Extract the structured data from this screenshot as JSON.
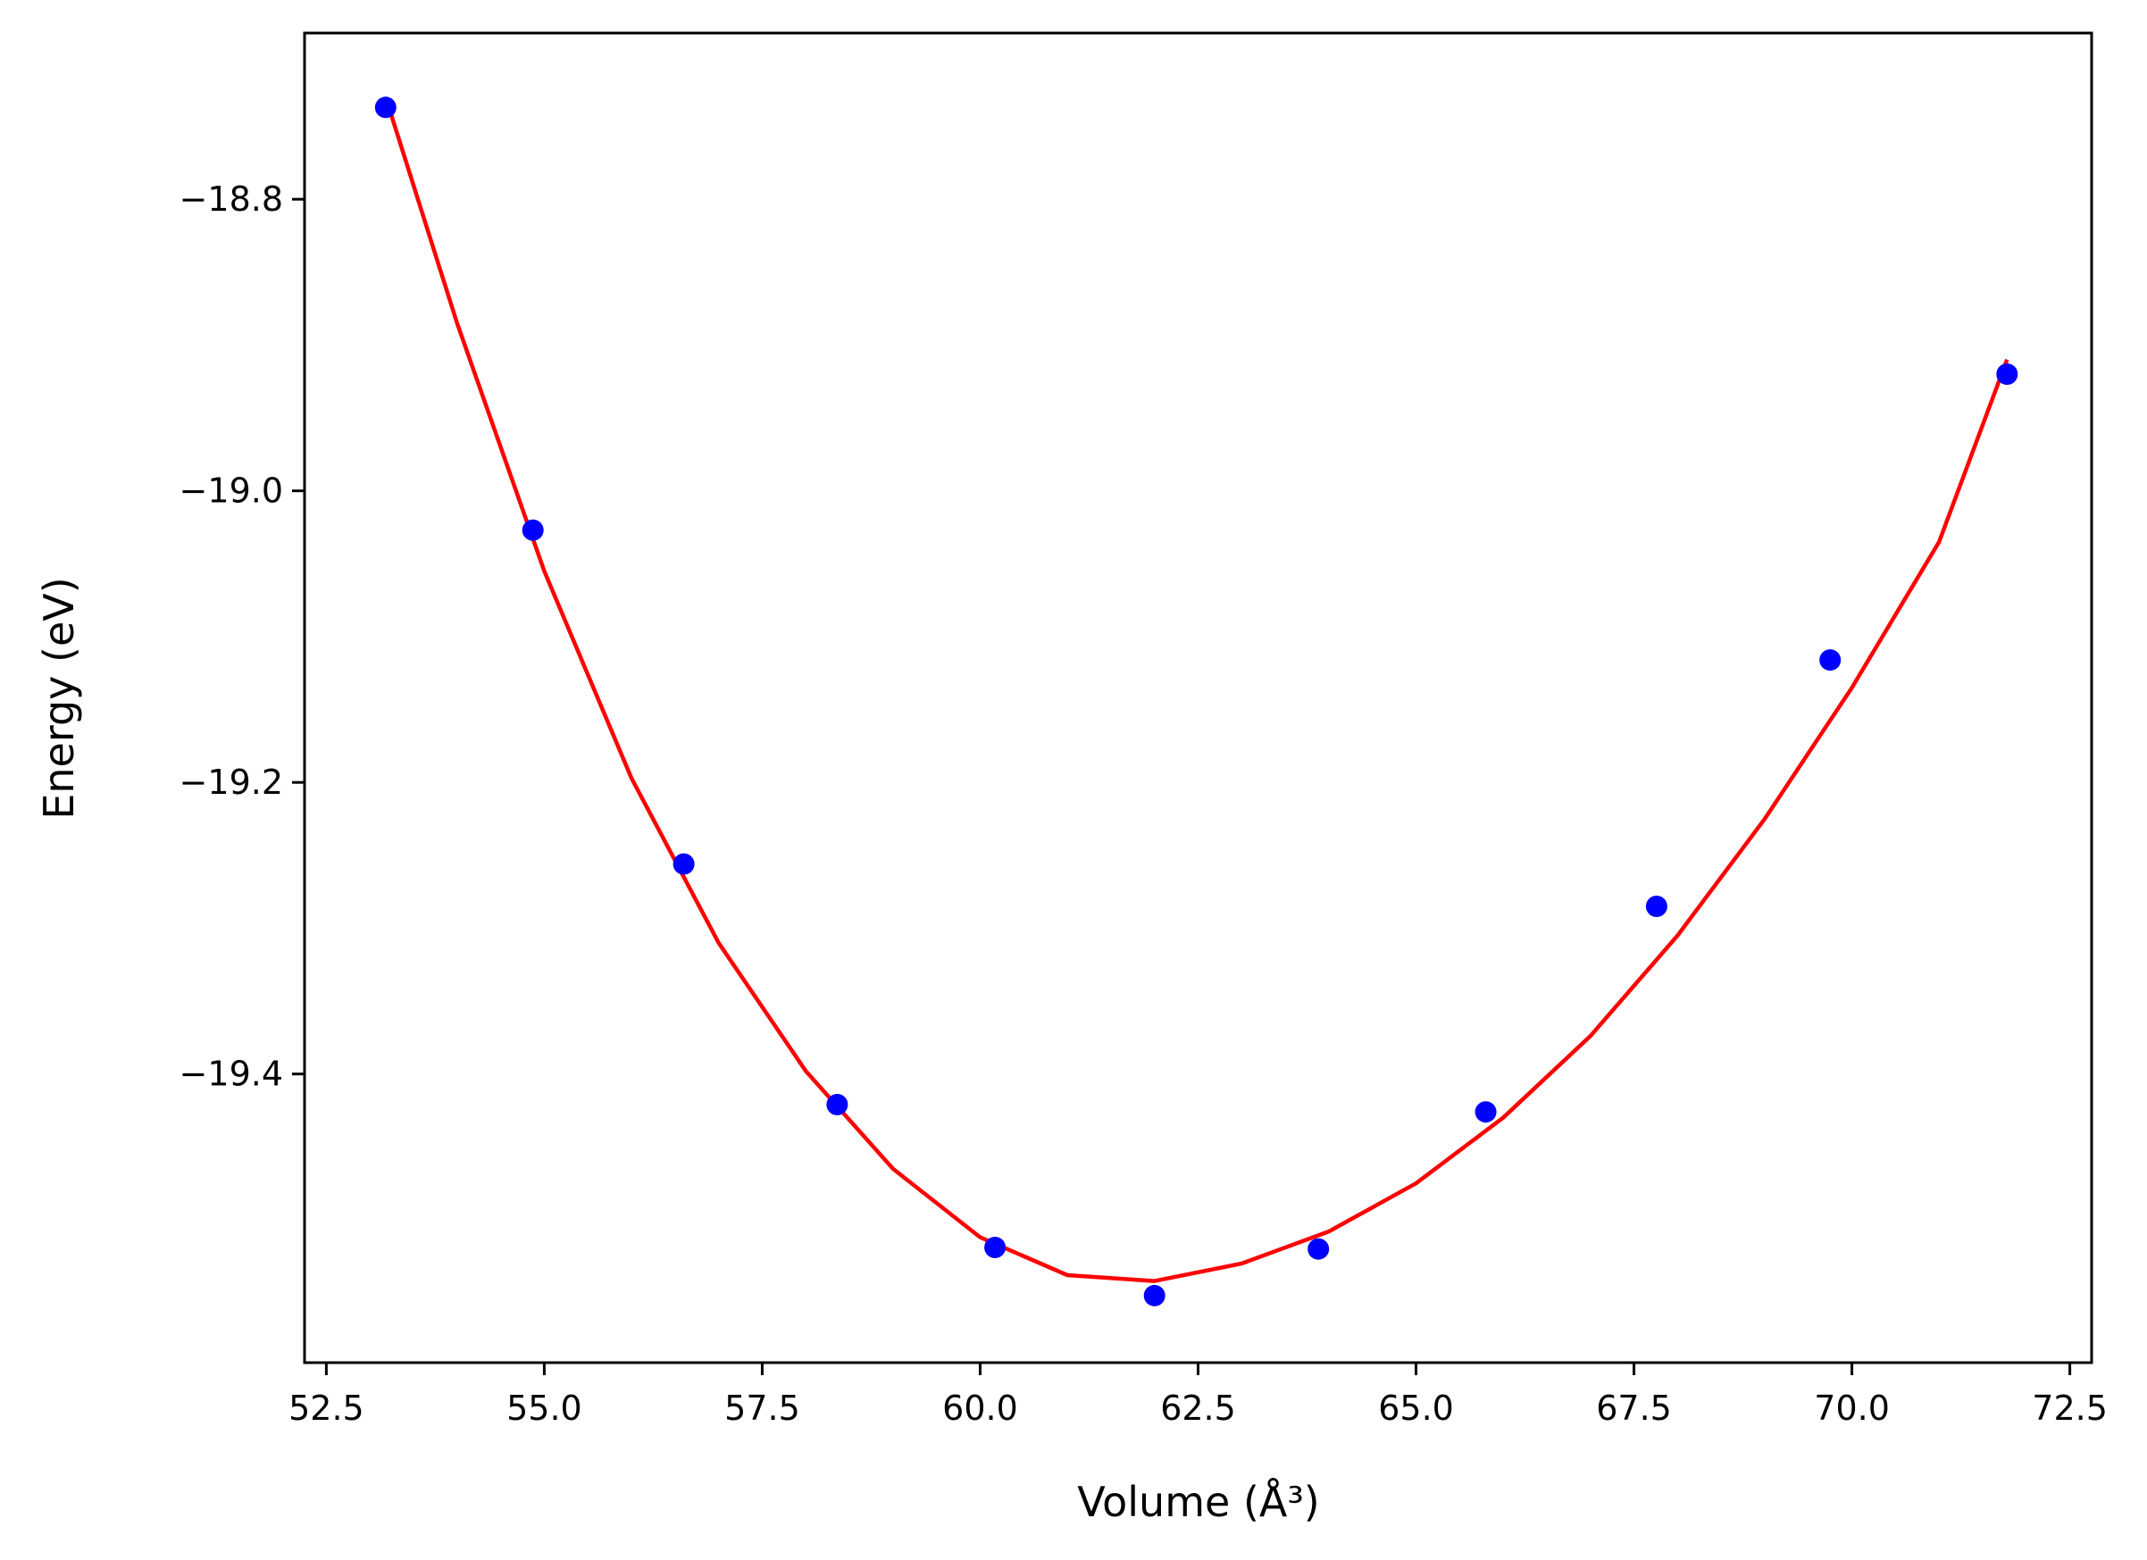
{
  "chart_data": {
    "type": "scatter",
    "xlabel": "Volume (Å³)",
    "ylabel": "Energy (eV)",
    "xlim": [
      52.25,
      72.75
    ],
    "ylim": [
      -19.598,
      -18.686
    ],
    "xticks": [
      52.5,
      55.0,
      57.5,
      60.0,
      62.5,
      65.0,
      67.5,
      70.0,
      72.5
    ],
    "xtick_labels": [
      "52.5",
      "55.0",
      "57.5",
      "60.0",
      "62.5",
      "65.0",
      "67.5",
      "70.0",
      "72.5"
    ],
    "yticks": [
      -18.8,
      -19.0,
      -19.2,
      -19.4
    ],
    "ytick_labels": [
      "−18.8",
      "−19.0",
      "−19.2",
      "−19.4"
    ],
    "grid": false,
    "series": [
      {
        "kind": "points",
        "color": "#0000ff",
        "x": [
          53.18,
          54.87,
          56.6,
          58.36,
          60.17,
          62.0,
          63.88,
          65.8,
          67.76,
          69.75,
          71.78
        ],
        "y": [
          -18.737,
          -19.027,
          -19.256,
          -19.421,
          -19.519,
          -19.552,
          -19.52,
          -19.426,
          -19.285,
          -19.116,
          -18.92
        ]
      },
      {
        "kind": "fit",
        "color": "#ff0000",
        "x": [
          53.18,
          54.0,
          55.0,
          56.0,
          57.0,
          58.0,
          59.0,
          60.0,
          61.0,
          62.0,
          63.0,
          64.0,
          65.0,
          66.0,
          67.0,
          68.0,
          69.0,
          70.0,
          71.0,
          71.78
        ],
        "y": [
          -18.73,
          -18.885,
          -19.055,
          -19.197,
          -19.31,
          -19.398,
          -19.465,
          -19.512,
          -19.538,
          -19.542,
          -19.53,
          -19.508,
          -19.475,
          -19.43,
          -19.374,
          -19.305,
          -19.225,
          -19.135,
          -19.035,
          -18.91
        ]
      }
    ]
  }
}
